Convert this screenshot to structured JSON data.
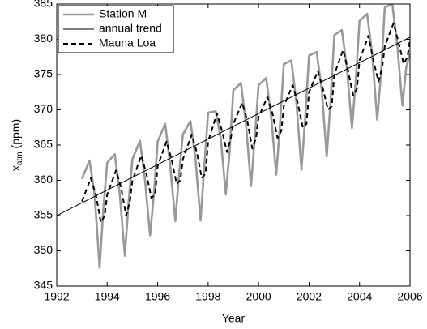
{
  "chart_data": {
    "type": "line",
    "xlabel": "Year",
    "ylabel": {
      "base": "x",
      "subscript": "atm",
      "unit": "(ppm)"
    },
    "xlim": [
      1992,
      2006
    ],
    "ylim": [
      345,
      385
    ],
    "xticks": [
      1992,
      1994,
      1996,
      1998,
      2000,
      2002,
      2004,
      2006
    ],
    "yticks": [
      345,
      350,
      355,
      360,
      365,
      370,
      375,
      380,
      385
    ],
    "legend": "upper-left",
    "series": [
      {
        "name": "Station M",
        "color": "#999999",
        "width": 2.6,
        "dash": "solid",
        "x": [
          1993.0,
          1993.3,
          1993.5,
          1993.7,
          1993.85,
          1994.0,
          1994.3,
          1994.5,
          1994.7,
          1994.85,
          1995.0,
          1995.3,
          1995.5,
          1995.7,
          1995.85,
          1996.0,
          1996.3,
          1996.5,
          1996.7,
          1996.85,
          1997.0,
          1997.3,
          1997.5,
          1997.7,
          1997.85,
          1998.0,
          1998.3,
          1998.5,
          1998.7,
          1998.85,
          1999.0,
          1999.3,
          1999.5,
          1999.7,
          1999.85,
          2000.0,
          2000.3,
          2000.5,
          2000.7,
          2000.85,
          2001.0,
          2001.3,
          2001.5,
          2001.7,
          2001.85,
          2002.0,
          2002.3,
          2002.5,
          2002.7,
          2002.85,
          2003.0,
          2003.3,
          2003.5,
          2003.7,
          2003.85,
          2004.0,
          2004.3,
          2004.5,
          2004.7,
          2004.85,
          2005.0,
          2005.3,
          2005.5,
          2005.7,
          2005.85,
          2006.0
        ],
        "values": [
          360.2,
          362.8,
          358,
          347.6,
          356,
          362.5,
          363.7,
          358,
          349.3,
          357,
          363,
          365.6,
          360,
          352.2,
          358,
          365.5,
          368,
          362,
          354.2,
          361,
          366.5,
          368.4,
          363,
          354.3,
          362,
          369.6,
          369.8,
          366,
          358,
          364,
          372.8,
          373.8,
          368,
          359.2,
          366,
          373.5,
          374.5,
          369,
          360.8,
          368,
          376.5,
          377,
          371,
          361.5,
          369,
          377.7,
          378.2,
          373,
          363.4,
          371,
          380.6,
          381.3,
          376,
          367.4,
          374,
          382.6,
          383.6,
          378,
          368.6,
          375,
          384.5,
          385,
          379,
          370.6,
          376,
          378
        ]
      },
      {
        "name": "annual trend",
        "color": "#000000",
        "width": 1,
        "dash": "solid",
        "x": [
          1992,
          2006
        ],
        "values": [
          355,
          380.3
        ]
      },
      {
        "name": "Mauna Loa",
        "color": "#000000",
        "width": 2,
        "dash": "dashed",
        "x": [
          1993.0,
          1993.35,
          1993.55,
          1993.75,
          1993.9,
          1994.0,
          1994.35,
          1994.55,
          1994.75,
          1994.9,
          1995.0,
          1995.35,
          1995.55,
          1995.75,
          1995.9,
          1996.0,
          1996.35,
          1996.55,
          1996.75,
          1996.9,
          1997.0,
          1997.35,
          1997.55,
          1997.75,
          1997.9,
          1998.0,
          1998.35,
          1998.55,
          1998.75,
          1998.9,
          1999.0,
          1999.35,
          1999.55,
          1999.75,
          1999.9,
          2000.0,
          2000.35,
          2000.55,
          2000.75,
          2000.9,
          2001.0,
          2001.35,
          2001.55,
          2001.75,
          2001.9,
          2002.0,
          2002.35,
          2002.55,
          2002.75,
          2002.9,
          2003.0,
          2003.35,
          2003.55,
          2003.75,
          2003.9,
          2004.0,
          2004.35,
          2004.55,
          2004.75,
          2004.9,
          2005.0,
          2005.35,
          2005.55,
          2005.75,
          2005.9,
          2006.0
        ],
        "values": [
          357,
          360.3,
          358,
          354,
          355,
          358,
          361.4,
          359,
          355,
          357,
          360,
          363.5,
          361,
          357.5,
          358,
          362,
          365.5,
          363,
          359.5,
          360,
          363,
          366.5,
          364,
          360.3,
          361,
          365.5,
          369.5,
          367,
          364,
          366,
          368,
          371,
          368.5,
          364.5,
          366,
          369,
          371.8,
          369.5,
          366,
          367,
          370.5,
          373.5,
          371,
          367.5,
          368,
          372.5,
          375.5,
          373,
          370,
          370.5,
          375,
          378.5,
          375.5,
          372,
          373,
          377,
          380.5,
          377,
          374,
          376,
          379,
          382.3,
          379.5,
          376.5,
          377.5,
          380
        ]
      }
    ]
  }
}
